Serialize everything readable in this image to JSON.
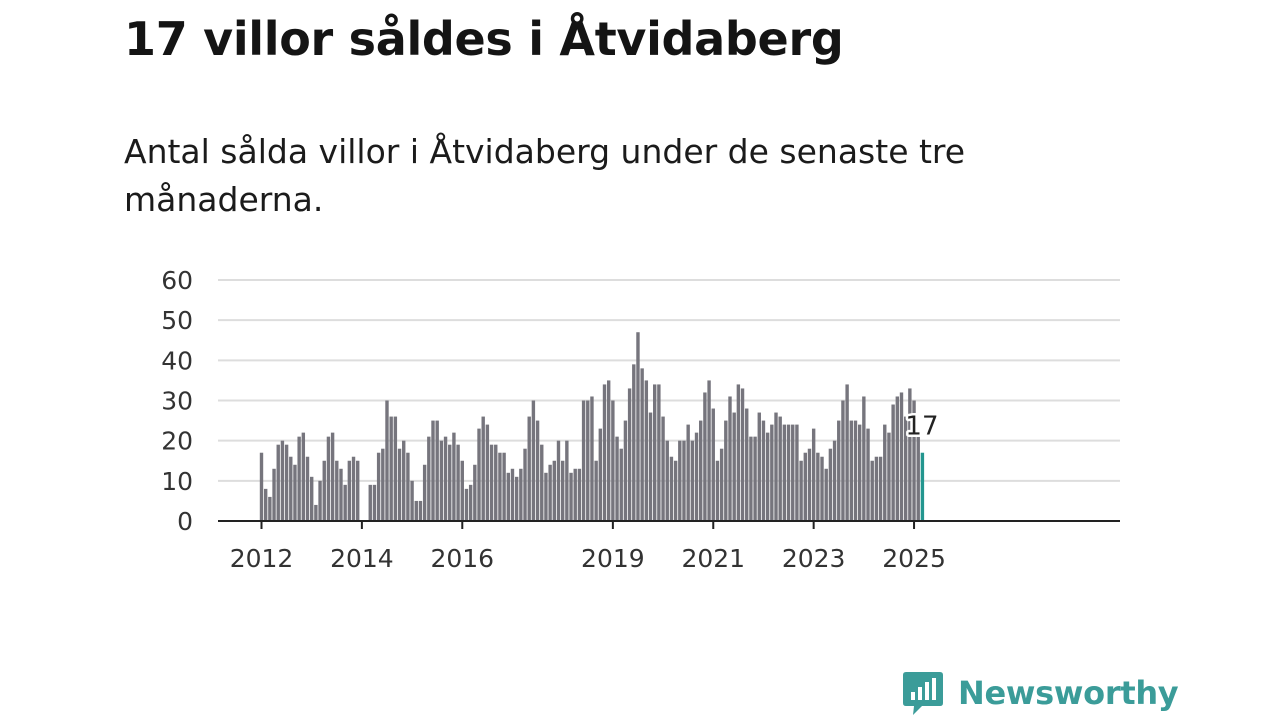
{
  "title": "17 villor såldes i Åtvidaberg",
  "subtitle": "Antal sålda villor i Åtvidaberg under de senaste tre månaderna.",
  "brand": {
    "name": "Newsworthy",
    "color": "#3b9c99"
  },
  "chart_data": {
    "type": "bar",
    "start": "2012-01",
    "bar_color": "#76757d",
    "highlight_color": "#23968f",
    "highlight_last": true,
    "value_label": "17",
    "ylim": [
      0,
      60
    ],
    "yticks": [
      0,
      10,
      20,
      30,
      40,
      50,
      60
    ],
    "xticks": [
      "2012",
      "2014",
      "2016",
      "2019",
      "2021",
      "2023",
      "2025"
    ],
    "grid": true,
    "values": [
      17,
      8,
      6,
      13,
      19,
      20,
      19,
      16,
      14,
      21,
      22,
      16,
      11,
      4,
      10,
      15,
      21,
      22,
      15,
      13,
      9,
      15,
      16,
      15,
      0,
      0,
      9,
      9,
      17,
      18,
      30,
      26,
      26,
      18,
      20,
      17,
      10,
      5,
      5,
      14,
      21,
      25,
      25,
      20,
      21,
      19,
      22,
      19,
      15,
      8,
      9,
      14,
      23,
      26,
      24,
      19,
      19,
      17,
      17,
      12,
      13,
      11,
      13,
      18,
      26,
      30,
      25,
      19,
      12,
      14,
      15,
      20,
      15,
      20,
      12,
      13,
      13,
      30,
      30,
      31,
      15,
      23,
      34,
      35,
      30,
      21,
      18,
      25,
      33,
      39,
      47,
      38,
      35,
      27,
      34,
      34,
      26,
      20,
      16,
      15,
      20,
      20,
      24,
      20,
      22,
      25,
      32,
      35,
      28,
      15,
      18,
      25,
      31,
      27,
      34,
      33,
      28,
      21,
      21,
      27,
      25,
      22,
      24,
      27,
      26,
      24,
      24,
      24,
      24,
      15,
      17,
      18,
      23,
      17,
      16,
      13,
      18,
      20,
      25,
      30,
      34,
      25,
      25,
      24,
      31,
      23,
      15,
      16,
      16,
      24,
      22,
      29,
      31,
      32,
      26,
      33,
      30,
      22,
      17
    ]
  }
}
